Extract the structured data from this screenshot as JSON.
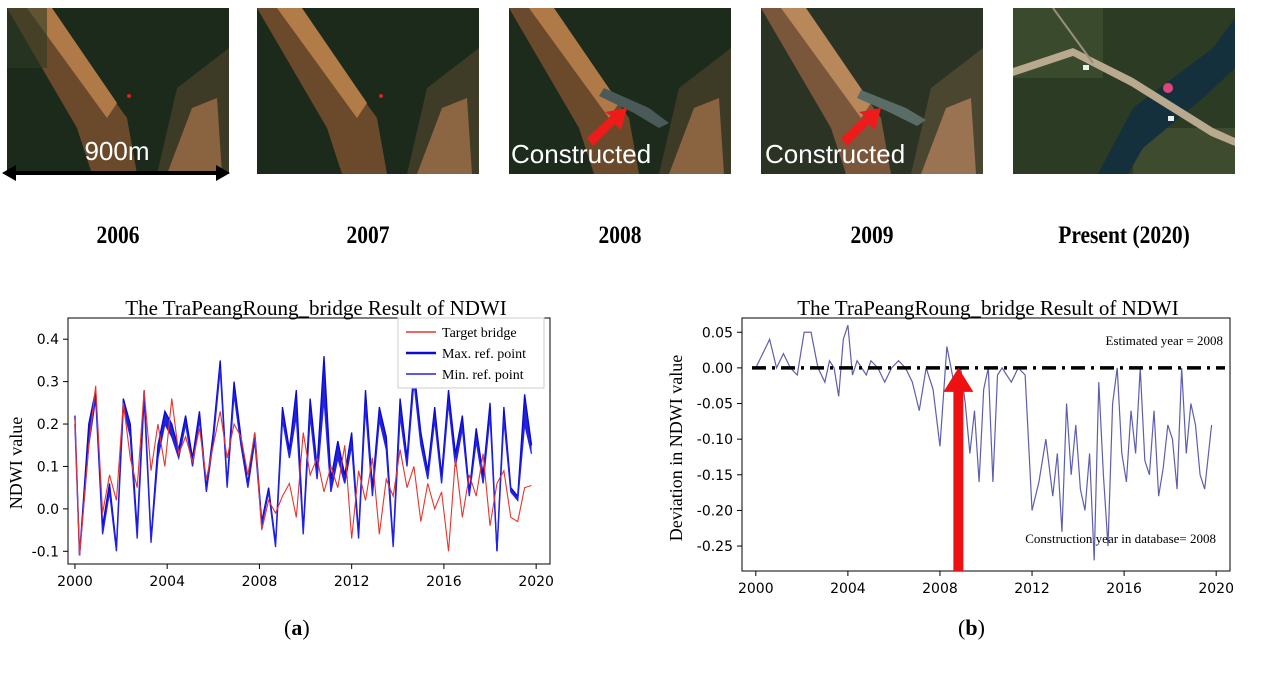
{
  "images": [
    {
      "year": "2006",
      "scale_label": "900m",
      "annotation": ""
    },
    {
      "year": "2007",
      "annotation": ""
    },
    {
      "year": "2008",
      "annotation": "Constructed"
    },
    {
      "year": "2009",
      "annotation": "Constructed"
    },
    {
      "year": "Present (2020)",
      "annotation": ""
    }
  ],
  "panels": {
    "a": "a",
    "b": "b"
  },
  "chart_data": [
    {
      "type": "line",
      "title": "The TraPeangRoung_bridge Result of NDWI",
      "ylabel": "NDWI value",
      "xlabel": "",
      "xlim": [
        1999.7,
        2020.6
      ],
      "ylim": [
        -0.13,
        0.45
      ],
      "xticks": [
        2000,
        2004,
        2008,
        2012,
        2016,
        2020
      ],
      "yticks": [
        -0.1,
        0.0,
        0.1,
        0.2,
        0.3,
        0.4
      ],
      "legend_position": "top-right",
      "colors": {
        "target": "#e8342c",
        "max": "#0a0ad2",
        "min": "#2222e8"
      },
      "series": [
        {
          "name": "Target bridge",
          "x": [
            2000.0,
            2000.2,
            2000.6,
            2000.9,
            2001.2,
            2001.5,
            2001.8,
            2002.1,
            2002.4,
            2002.7,
            2003.0,
            2003.3,
            2003.6,
            2003.9,
            2004.2,
            2004.5,
            2004.8,
            2005.1,
            2005.4,
            2005.7,
            2006.0,
            2006.3,
            2006.6,
            2006.9,
            2007.2,
            2007.5,
            2007.8,
            2008.1,
            2008.4,
            2008.7,
            2009.0,
            2009.3,
            2009.6,
            2009.9,
            2010.2,
            2010.5,
            2010.8,
            2011.1,
            2011.4,
            2011.7,
            2012.0,
            2012.3,
            2012.6,
            2012.9,
            2013.2,
            2013.5,
            2013.8,
            2014.1,
            2014.4,
            2014.7,
            2015.0,
            2015.3,
            2015.6,
            2015.9,
            2016.2,
            2016.5,
            2016.8,
            2017.1,
            2017.4,
            2017.7,
            2018.0,
            2018.3,
            2018.6,
            2018.9,
            2019.2,
            2019.5,
            2019.8
          ],
          "y": [
            0.21,
            -0.11,
            0.15,
            0.29,
            -0.01,
            0.08,
            0.02,
            0.25,
            0.12,
            0.05,
            0.28,
            0.09,
            0.2,
            0.1,
            0.26,
            0.13,
            0.17,
            0.11,
            0.19,
            0.07,
            0.15,
            0.23,
            0.12,
            0.2,
            0.17,
            0.08,
            0.18,
            -0.05,
            0.02,
            -0.01,
            0.03,
            0.06,
            -0.02,
            0.18,
            0.08,
            0.12,
            0.04,
            0.1,
            0.05,
            0.15,
            -0.07,
            0.09,
            0.02,
            0.12,
            -0.06,
            0.07,
            0.03,
            0.14,
            0.05,
            0.1,
            -0.03,
            0.06,
            0.0,
            0.04,
            -0.1,
            0.12,
            -0.02,
            0.08,
            0.03,
            0.13,
            -0.04,
            0.06,
            0.09,
            -0.02,
            -0.03,
            0.05,
            0.055
          ]
        },
        {
          "name": "Max. ref. point",
          "x": [
            2000.0,
            2000.2,
            2000.6,
            2000.9,
            2001.2,
            2001.5,
            2001.8,
            2002.1,
            2002.4,
            2002.7,
            2003.0,
            2003.3,
            2003.6,
            2003.9,
            2004.2,
            2004.5,
            2004.8,
            2005.1,
            2005.4,
            2005.7,
            2006.0,
            2006.3,
            2006.6,
            2006.9,
            2007.2,
            2007.5,
            2007.8,
            2008.1,
            2008.4,
            2008.7,
            2009.0,
            2009.3,
            2009.6,
            2009.9,
            2010.2,
            2010.5,
            2010.8,
            2011.1,
            2011.4,
            2011.7,
            2012.0,
            2012.3,
            2012.6,
            2012.9,
            2013.2,
            2013.5,
            2013.8,
            2014.1,
            2014.4,
            2014.7,
            2015.0,
            2015.3,
            2015.6,
            2015.9,
            2016.2,
            2016.5,
            2016.8,
            2017.1,
            2017.4,
            2017.7,
            2018.0,
            2018.3,
            2018.6,
            2018.9,
            2019.2,
            2019.5,
            2019.8
          ],
          "y": [
            0.22,
            -0.11,
            0.2,
            0.28,
            -0.04,
            0.06,
            -0.09,
            0.26,
            0.2,
            -0.05,
            0.28,
            -0.07,
            0.15,
            0.23,
            0.2,
            0.14,
            0.22,
            0.12,
            0.23,
            0.05,
            0.18,
            0.35,
            0.06,
            0.3,
            0.17,
            0.06,
            0.18,
            -0.03,
            0.05,
            -0.08,
            0.24,
            0.14,
            0.28,
            -0.05,
            0.26,
            0.1,
            0.36,
            0.07,
            0.16,
            0.08,
            0.18,
            -0.06,
            0.28,
            0.05,
            0.24,
            0.17,
            -0.08,
            0.26,
            0.12,
            0.33,
            0.18,
            0.09,
            0.24,
            0.08,
            0.28,
            0.13,
            0.22,
            0.04,
            0.19,
            0.08,
            0.25,
            -0.1,
            0.24,
            0.05,
            0.03,
            0.27,
            0.15
          ]
        },
        {
          "name": "Min. ref. point",
          "x": [
            2000.0,
            2000.2,
            2000.6,
            2000.9,
            2001.2,
            2001.5,
            2001.8,
            2002.1,
            2002.4,
            2002.7,
            2003.0,
            2003.3,
            2003.6,
            2003.9,
            2004.2,
            2004.5,
            2004.8,
            2005.1,
            2005.4,
            2005.7,
            2006.0,
            2006.3,
            2006.6,
            2006.9,
            2007.2,
            2007.5,
            2007.8,
            2008.1,
            2008.4,
            2008.7,
            2009.0,
            2009.3,
            2009.6,
            2009.9,
            2010.2,
            2010.5,
            2010.8,
            2011.1,
            2011.4,
            2011.7,
            2012.0,
            2012.3,
            2012.6,
            2012.9,
            2013.2,
            2013.5,
            2013.8,
            2014.1,
            2014.4,
            2014.7,
            2015.0,
            2015.3,
            2015.6,
            2015.9,
            2016.2,
            2016.5,
            2016.8,
            2017.1,
            2017.4,
            2017.7,
            2018.0,
            2018.3,
            2018.6,
            2018.9,
            2019.2,
            2019.5,
            2019.8
          ],
          "y": [
            0.2,
            -0.11,
            0.15,
            0.26,
            -0.06,
            0.04,
            -0.1,
            0.24,
            0.17,
            -0.07,
            0.26,
            -0.08,
            0.12,
            0.2,
            0.17,
            0.12,
            0.2,
            0.1,
            0.21,
            0.04,
            0.16,
            0.33,
            0.05,
            0.27,
            0.15,
            0.05,
            0.16,
            -0.04,
            0.04,
            -0.09,
            0.21,
            0.12,
            0.22,
            -0.06,
            0.22,
            0.07,
            0.26,
            0.04,
            0.12,
            0.06,
            0.15,
            -0.07,
            0.24,
            0.03,
            0.21,
            0.14,
            -0.09,
            0.22,
            0.1,
            0.3,
            0.15,
            0.07,
            0.21,
            0.06,
            0.25,
            0.1,
            0.19,
            0.03,
            0.16,
            0.06,
            0.22,
            -0.1,
            0.21,
            0.04,
            0.02,
            0.2,
            0.13
          ]
        }
      ]
    },
    {
      "type": "line",
      "title": "The TraPeangRoung_bridge Result of NDWI",
      "ylabel": "Deviation in NDWI value",
      "xlabel": "",
      "xlim": [
        1999.4,
        2020.6
      ],
      "ylim": [
        -0.285,
        0.07
      ],
      "xticks": [
        2000,
        2004,
        2008,
        2012,
        2016,
        2020
      ],
      "yticks": [
        0.05,
        0.0,
        -0.05,
        -0.1,
        -0.15,
        -0.2,
        -0.25
      ],
      "annotations": {
        "estimated": "Estimated year = 2008",
        "construction": "Construction year in database= 2008"
      },
      "reference_line": 0.0,
      "arrow_year": 2008.8,
      "colors": {
        "line": "#5e5eb0",
        "arrow": "#ee1111",
        "ref": "#000000"
      },
      "series": [
        {
          "x": [
            2000.0,
            2000.3,
            2000.6,
            2000.9,
            2001.2,
            2001.5,
            2001.8,
            2002.1,
            2002.4,
            2002.7,
            2003.0,
            2003.2,
            2003.4,
            2003.6,
            2003.8,
            2004.0,
            2004.2,
            2004.4,
            2004.6,
            2004.8,
            2005.0,
            2005.3,
            2005.6,
            2005.9,
            2006.2,
            2006.5,
            2006.8,
            2007.1,
            2007.4,
            2007.7,
            2008.0,
            2008.3,
            2008.6,
            2008.9,
            2009.1,
            2009.3,
            2009.5,
            2009.7,
            2009.9,
            2010.1,
            2010.3,
            2010.5,
            2010.7,
            2010.9,
            2011.1,
            2011.4,
            2011.7,
            2012.0,
            2012.3,
            2012.6,
            2012.9,
            2013.1,
            2013.3,
            2013.5,
            2013.7,
            2013.9,
            2014.1,
            2014.3,
            2014.5,
            2014.7,
            2014.9,
            2015.1,
            2015.3,
            2015.5,
            2015.7,
            2015.9,
            2016.1,
            2016.3,
            2016.5,
            2016.7,
            2016.9,
            2017.1,
            2017.3,
            2017.5,
            2017.7,
            2017.9,
            2018.1,
            2018.3,
            2018.5,
            2018.7,
            2018.9,
            2019.1,
            2019.3,
            2019.5,
            2019.8
          ],
          "y": [
            0.0,
            0.02,
            0.04,
            0.0,
            0.02,
            0.0,
            -0.01,
            0.05,
            0.05,
            0.0,
            -0.02,
            0.01,
            0.0,
            -0.04,
            0.04,
            0.06,
            -0.01,
            0.01,
            0.0,
            -0.01,
            0.01,
            0.0,
            -0.02,
            0.0,
            0.01,
            0.0,
            -0.02,
            -0.06,
            0.0,
            -0.03,
            -0.11,
            0.03,
            -0.02,
            0.0,
            -0.05,
            -0.12,
            -0.06,
            -0.16,
            -0.03,
            0.0,
            -0.16,
            -0.01,
            0.0,
            -0.01,
            -0.02,
            0.0,
            -0.01,
            -0.2,
            -0.16,
            -0.1,
            -0.18,
            -0.12,
            -0.23,
            -0.05,
            -0.15,
            -0.08,
            -0.17,
            -0.2,
            -0.12,
            -0.27,
            -0.02,
            -0.15,
            -0.25,
            -0.05,
            0.0,
            -0.12,
            -0.16,
            -0.06,
            -0.12,
            0.0,
            -0.13,
            -0.15,
            -0.06,
            -0.18,
            -0.14,
            -0.08,
            -0.1,
            -0.17,
            0.0,
            -0.12,
            -0.05,
            -0.08,
            -0.15,
            -0.17,
            -0.08
          ]
        }
      ]
    }
  ]
}
